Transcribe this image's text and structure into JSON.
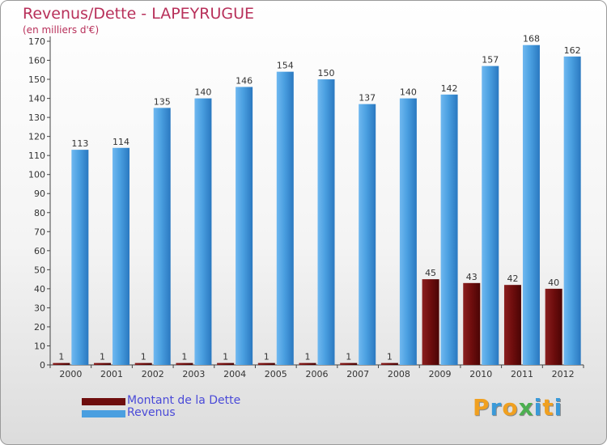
{
  "chart_data": {
    "type": "bar",
    "title": "Revenus/Dette - LAPEYRUGUE",
    "subtitle": "(en milliers d'€)",
    "categories": [
      "2000",
      "2001",
      "2002",
      "2003",
      "2004",
      "2005",
      "2006",
      "2007",
      "2008",
      "2009",
      "2010",
      "2011",
      "2012"
    ],
    "series": [
      {
        "name": "Montant de la Dette",
        "color": "#6e0d0d",
        "values": [
          1,
          1,
          1,
          1,
          1,
          1,
          1,
          1,
          1,
          45,
          43,
          42,
          40
        ]
      },
      {
        "name": "Revenus",
        "color": "#4a9fe0",
        "values": [
          113,
          114,
          135,
          140,
          146,
          154,
          150,
          137,
          140,
          142,
          157,
          168,
          162
        ]
      }
    ],
    "ylim": [
      0,
      170
    ],
    "yticks": [
      0,
      10,
      20,
      30,
      40,
      50,
      60,
      70,
      80,
      90,
      100,
      110,
      120,
      130,
      140,
      150,
      160,
      170
    ],
    "grid": false,
    "legend_position": "bottom-left",
    "xlabel": "",
    "ylabel": ""
  },
  "logo": {
    "text": "Proxiti",
    "letters": [
      "P",
      "r",
      "o",
      "x",
      "i",
      "t",
      "i"
    ],
    "colors": [
      "#f0a020",
      "#3a9ad9",
      "#f0a020",
      "#4caf50",
      "#3a9ad9",
      "#f0a020",
      "#3a9ad9"
    ]
  }
}
